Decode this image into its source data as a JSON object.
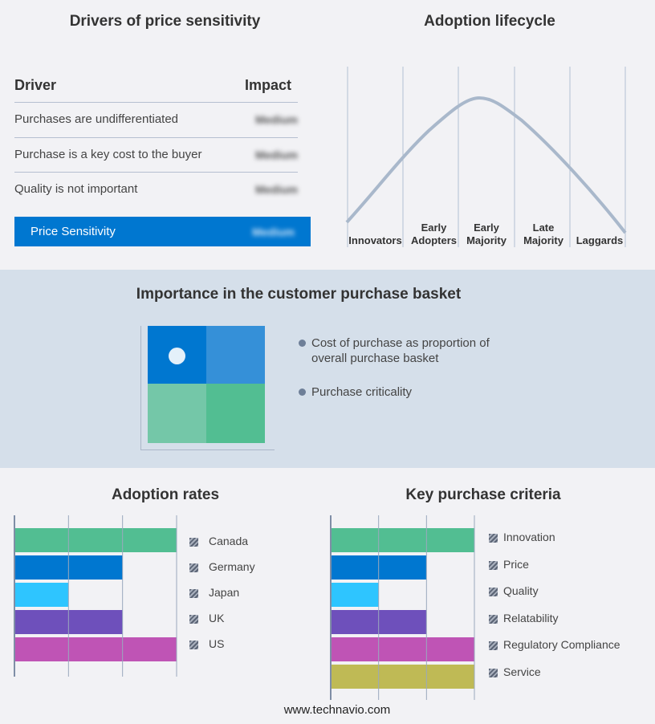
{
  "drivers": {
    "title": "Drivers of price sensitivity",
    "col_driver": "Driver",
    "col_impact": "Impact",
    "rows": [
      {
        "driver": "Purchases are undifferentiated",
        "impact": "Medium"
      },
      {
        "driver": "Purchase is a key cost to the buyer",
        "impact": "Medium"
      },
      {
        "driver": "Quality is not important",
        "impact": "Medium"
      }
    ],
    "summary": {
      "label": "Price Sensitivity",
      "impact": "Medium"
    },
    "accent": "#0077d0"
  },
  "lifecycle": {
    "title": "Adoption lifecycle",
    "stages": [
      [
        "Innovators"
      ],
      [
        "Early",
        "Adopters"
      ],
      [
        "Early",
        "Majority"
      ],
      [
        "Late",
        "Majority"
      ],
      [
        "Laggards"
      ]
    ],
    "curve_color": "#a9b8cb"
  },
  "basket": {
    "title": "Importance in the customer purchase basket",
    "legend": [
      "Cost of purchase as proportion of overall purchase basket",
      "Purchase criticality"
    ],
    "quadrant_colors": [
      "#0077d0",
      "#3590d8",
      "#74c7a8",
      "#52be92"
    ],
    "marker": "top-left"
  },
  "chart_data": [
    {
      "type": "bar",
      "orientation": "horizontal",
      "title": "Adoption rates",
      "categories": [
        "Canada",
        "Germany",
        "Japan",
        "UK",
        "US"
      ],
      "values": [
        3,
        2,
        1,
        2,
        3
      ],
      "colors": [
        "#52be92",
        "#0077d0",
        "#2ec5ff",
        "#6e50bb",
        "#bf54b5"
      ],
      "xlim": [
        0,
        3
      ],
      "grid": true,
      "legend": "right"
    },
    {
      "type": "bar",
      "orientation": "horizontal",
      "title": "Key purchase criteria",
      "categories": [
        "Innovation",
        "Price",
        "Quality",
        "Relatability",
        "Regulatory Compliance",
        "Service"
      ],
      "values": [
        3,
        2,
        1,
        2,
        3,
        3
      ],
      "colors": [
        "#52be92",
        "#0077d0",
        "#2ec5ff",
        "#6e50bb",
        "#bf54b5",
        "#bfba55"
      ],
      "xlim": [
        0,
        3
      ],
      "grid": true,
      "legend": "right"
    }
  ],
  "footer": "www.technavio.com"
}
